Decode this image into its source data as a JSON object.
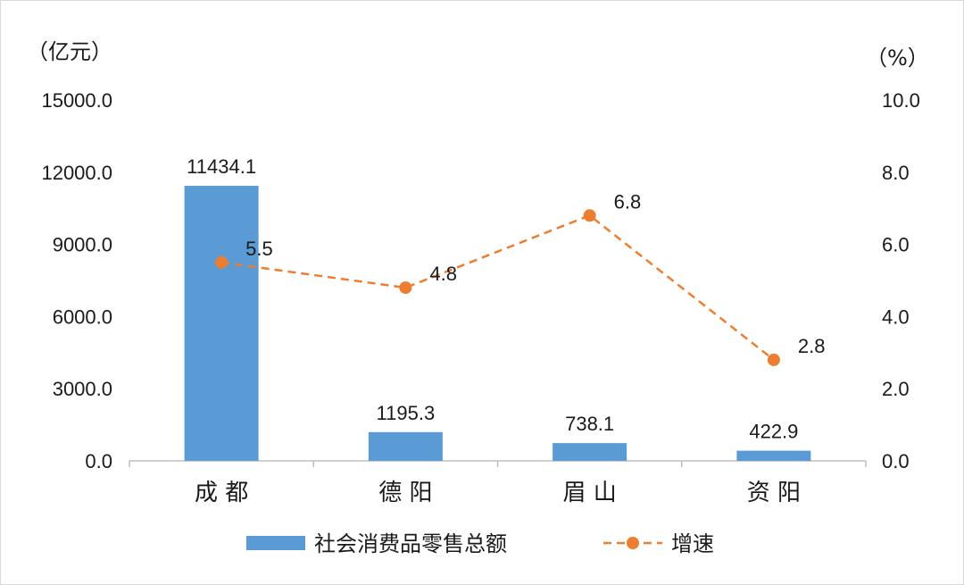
{
  "chart_data": {
    "type": "bar",
    "categories": [
      "成 都",
      "德 阳",
      "眉 山",
      "资 阳"
    ],
    "series": [
      {
        "name": "社会消费品零售总额",
        "type": "bar",
        "axis": "left",
        "values": [
          11434.1,
          1195.3,
          738.1,
          422.9
        ],
        "labels": [
          "11434.1",
          "1195.3",
          "738.1",
          "422.9"
        ],
        "color": "#5b9bd5"
      },
      {
        "name": "增速",
        "type": "line",
        "axis": "right",
        "style": "dashed",
        "values": [
          5.5,
          4.8,
          6.8,
          2.8
        ],
        "labels": [
          "5.5",
          "4.8",
          "6.8",
          "2.8"
        ],
        "color": "#ed7d31"
      }
    ],
    "left_axis": {
      "unit": "（亿元）",
      "ylim": [
        0,
        15000
      ],
      "ticks": [
        "0.0",
        "3000.0",
        "6000.0",
        "9000.0",
        "12000.0",
        "15000.0"
      ]
    },
    "right_axis": {
      "unit": "（%）",
      "ylim": [
        0,
        10
      ],
      "ticks": [
        "0.0",
        "2.0",
        "4.0",
        "6.0",
        "8.0",
        "10.0"
      ]
    },
    "grid": false,
    "legend_position": "bottom"
  }
}
